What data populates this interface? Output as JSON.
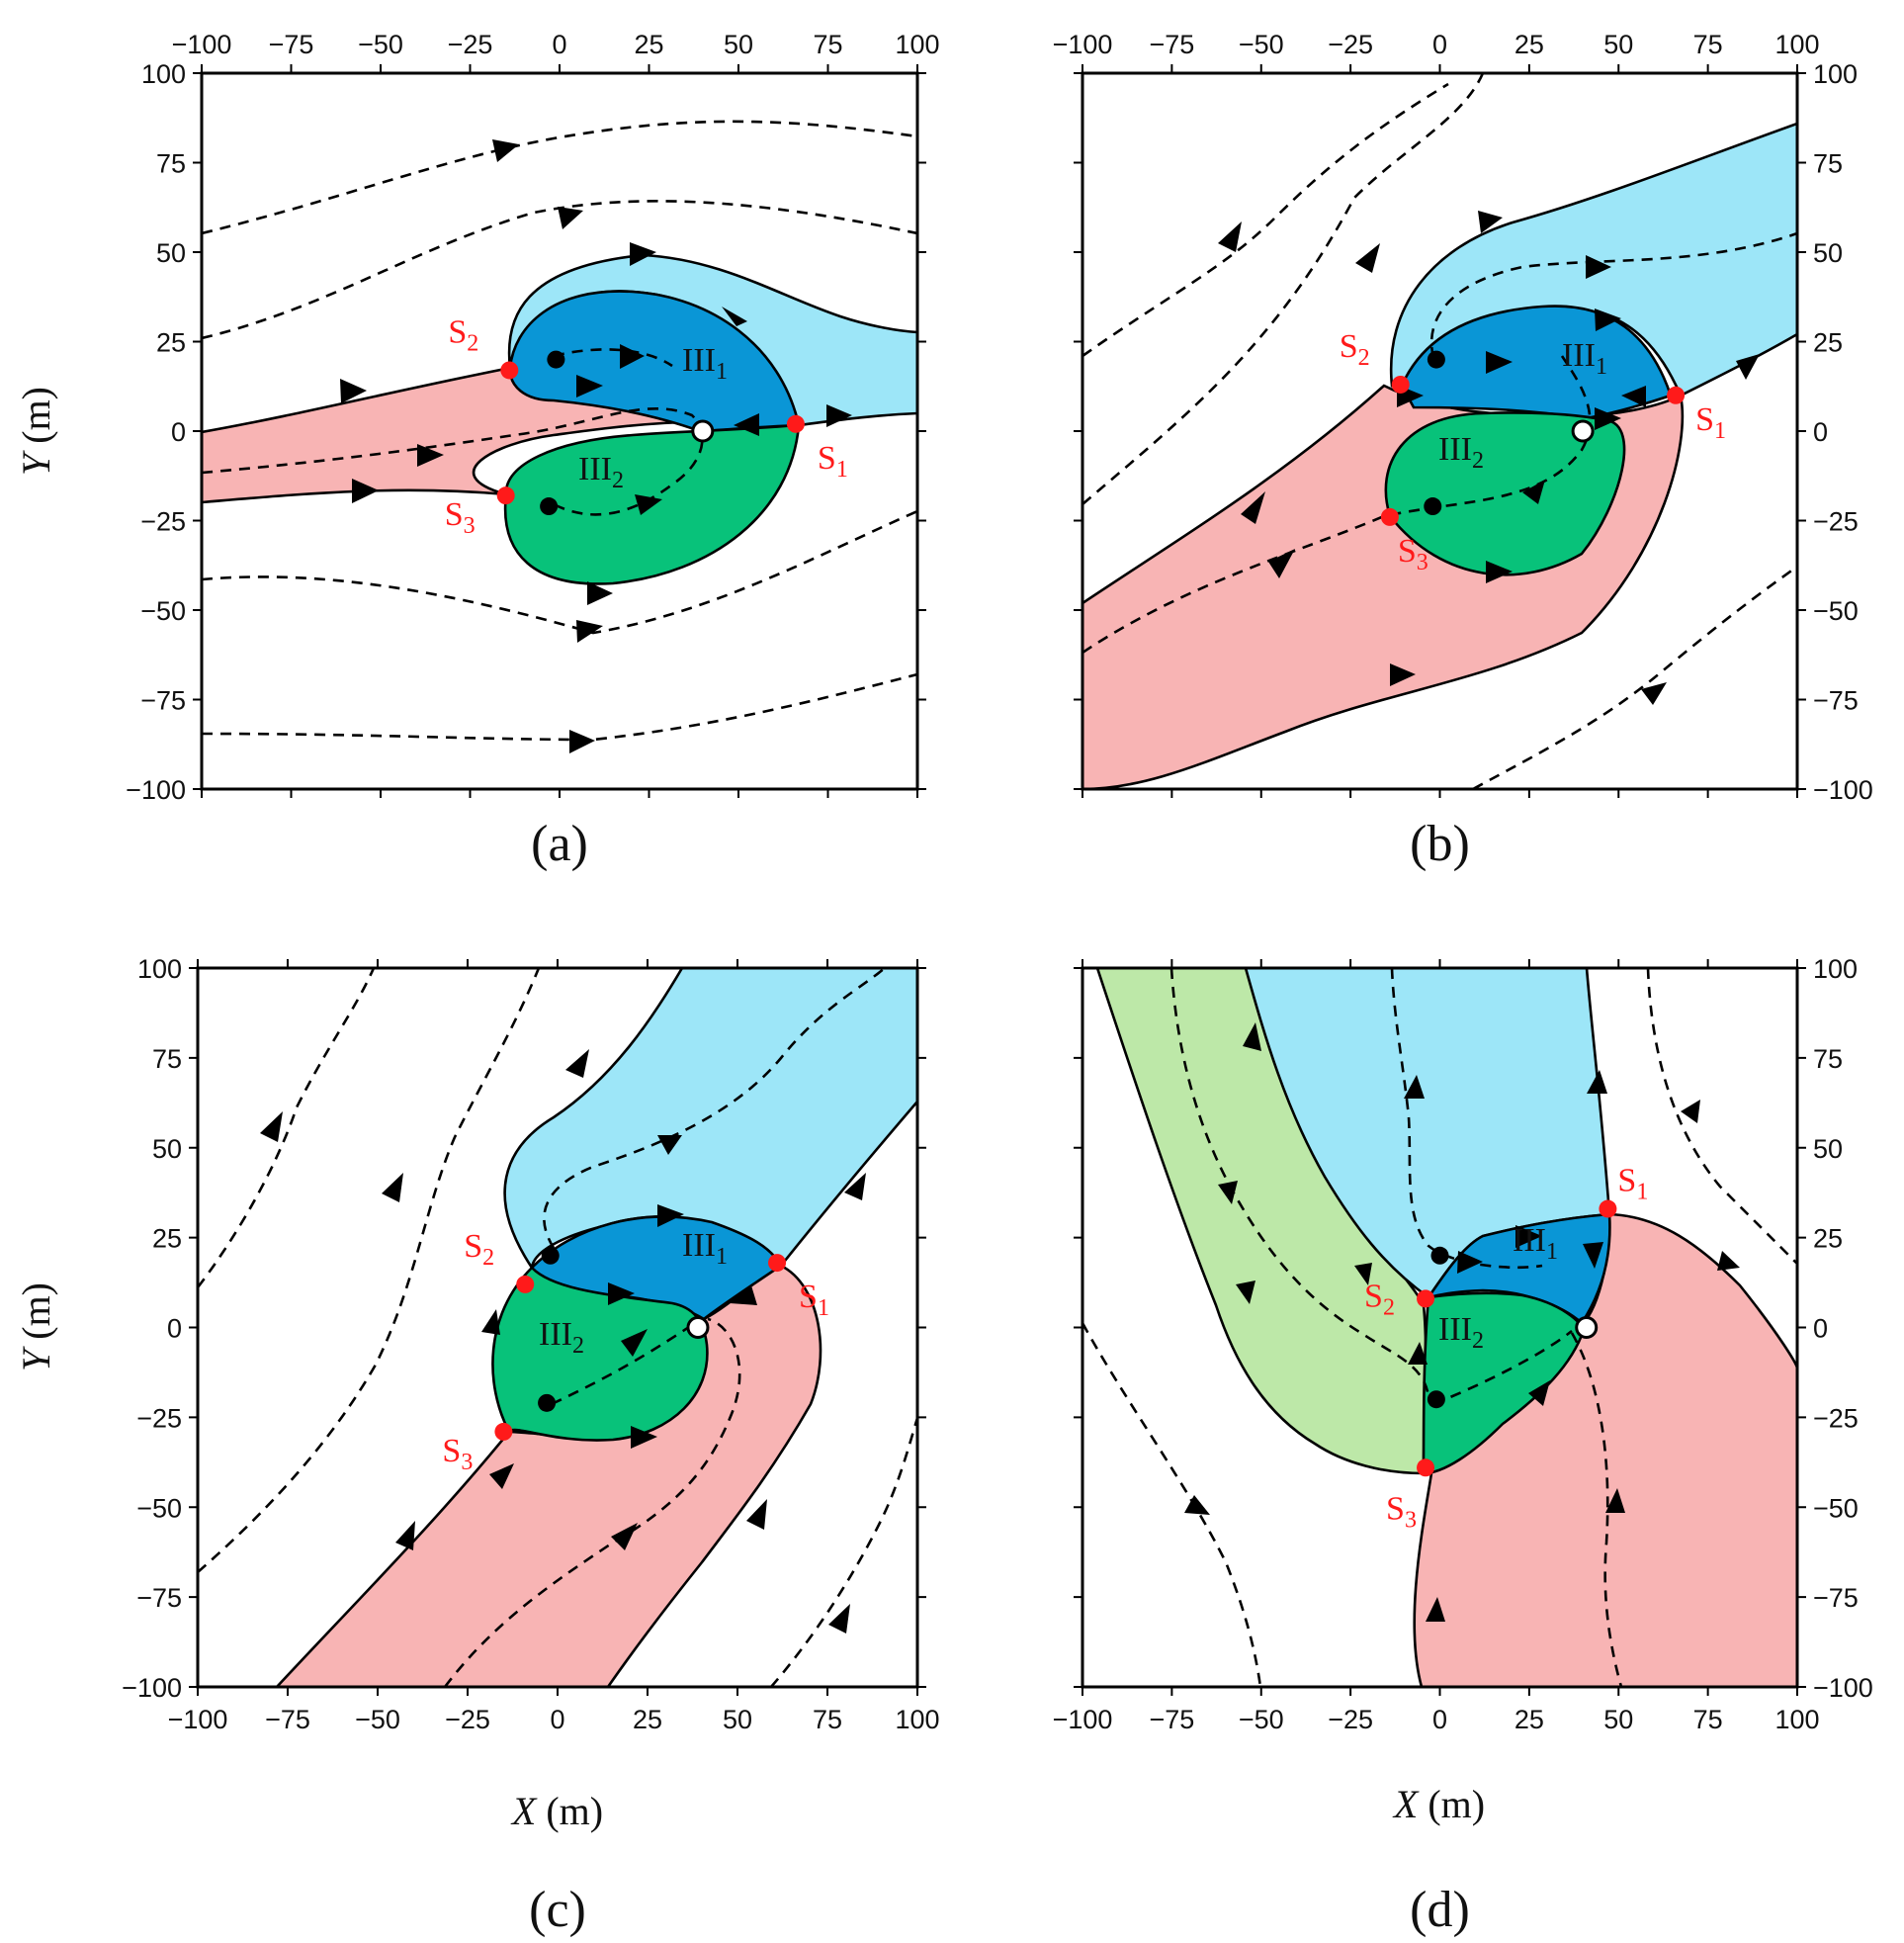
{
  "colors": {
    "light_blue": "#9de6f8",
    "dark_blue": "#0a96d6",
    "green": "#08c27a",
    "light_green": "#bde8a8",
    "pink": "#f8b4b4",
    "saddle": "#ff1a1a"
  },
  "labels": {
    "ylabel_var": "Y",
    "ylabel_unit": " (m)",
    "xlabel_var": "X",
    "xlabel_unit": " (m)",
    "region1": "III",
    "region1_sub": "1",
    "region2": "III",
    "region2_sub": "2",
    "saddle_letter": "S",
    "saddle_subs": [
      "1",
      "2",
      "3"
    ]
  },
  "chart_data": [
    {
      "type": "phase-portrait",
      "panel": "(a)",
      "xlim": [
        -100,
        100
      ],
      "ylim": [
        -100,
        100
      ],
      "xticks": [
        -100,
        -75,
        -50,
        -25,
        0,
        25,
        50,
        75,
        100
      ],
      "yticks": [
        -100,
        -75,
        -50,
        -25,
        0,
        25,
        50,
        75,
        100
      ],
      "grid": false,
      "saddles": [
        {
          "label": "S1",
          "x": 66,
          "y": 2
        },
        {
          "label": "S2",
          "x": -14,
          "y": 17
        },
        {
          "label": "S3",
          "x": -15,
          "y": -18
        }
      ],
      "equilibrium": {
        "x": 40,
        "y": 0
      },
      "sources": [
        {
          "x": -1,
          "y": 20
        },
        {
          "x": -3,
          "y": -21
        }
      ]
    },
    {
      "type": "phase-portrait",
      "panel": "(b)",
      "xlim": [
        -100,
        100
      ],
      "ylim": [
        -100,
        100
      ],
      "xticks": [
        -100,
        -75,
        -50,
        -25,
        0,
        25,
        50,
        75,
        100
      ],
      "yticks": [
        -100,
        -75,
        -50,
        -25,
        0,
        25,
        50,
        75,
        100
      ],
      "grid": false,
      "saddles": [
        {
          "label": "S1",
          "x": 66,
          "y": 10
        },
        {
          "label": "S2",
          "x": -11,
          "y": 13
        },
        {
          "label": "S3",
          "x": -14,
          "y": -24
        }
      ],
      "equilibrium": {
        "x": 40,
        "y": 0
      },
      "sources": [
        {
          "x": -1,
          "y": 20
        },
        {
          "x": -2,
          "y": -21
        }
      ]
    },
    {
      "type": "phase-portrait",
      "panel": "(c)",
      "xlim": [
        -100,
        100
      ],
      "ylim": [
        -100,
        100
      ],
      "xticks": [
        -100,
        -75,
        -50,
        -25,
        0,
        25,
        50,
        75,
        100
      ],
      "yticks": [
        -100,
        -75,
        -50,
        -25,
        0,
        25,
        50,
        75,
        100
      ],
      "xlabel": "X (m)",
      "ylabel": "Y (m)",
      "grid": false,
      "saddles": [
        {
          "label": "S1",
          "x": 61,
          "y": 18
        },
        {
          "label": "S2",
          "x": -9,
          "y": 12
        },
        {
          "label": "S3",
          "x": -15,
          "y": -29
        }
      ],
      "equilibrium": {
        "x": 39,
        "y": 0
      },
      "sources": [
        {
          "x": -2,
          "y": 20
        },
        {
          "x": -3,
          "y": -21
        }
      ]
    },
    {
      "type": "phase-portrait",
      "panel": "(d)",
      "xlim": [
        -100,
        100
      ],
      "ylim": [
        -100,
        100
      ],
      "xticks": [
        -100,
        -75,
        -50,
        -25,
        0,
        25,
        50,
        75,
        100
      ],
      "yticks": [
        -100,
        -75,
        -50,
        -25,
        0,
        25,
        50,
        75,
        100
      ],
      "xlabel": "X (m)",
      "grid": false,
      "saddles": [
        {
          "label": "S1",
          "x": 47,
          "y": 33
        },
        {
          "label": "S2",
          "x": -4,
          "y": 8
        },
        {
          "label": "S3",
          "x": -4,
          "y": -39
        }
      ],
      "equilibrium": {
        "x": 41,
        "y": 0
      },
      "sources": [
        {
          "x": 0,
          "y": 20
        },
        {
          "x": -1,
          "y": -20
        }
      ]
    }
  ]
}
